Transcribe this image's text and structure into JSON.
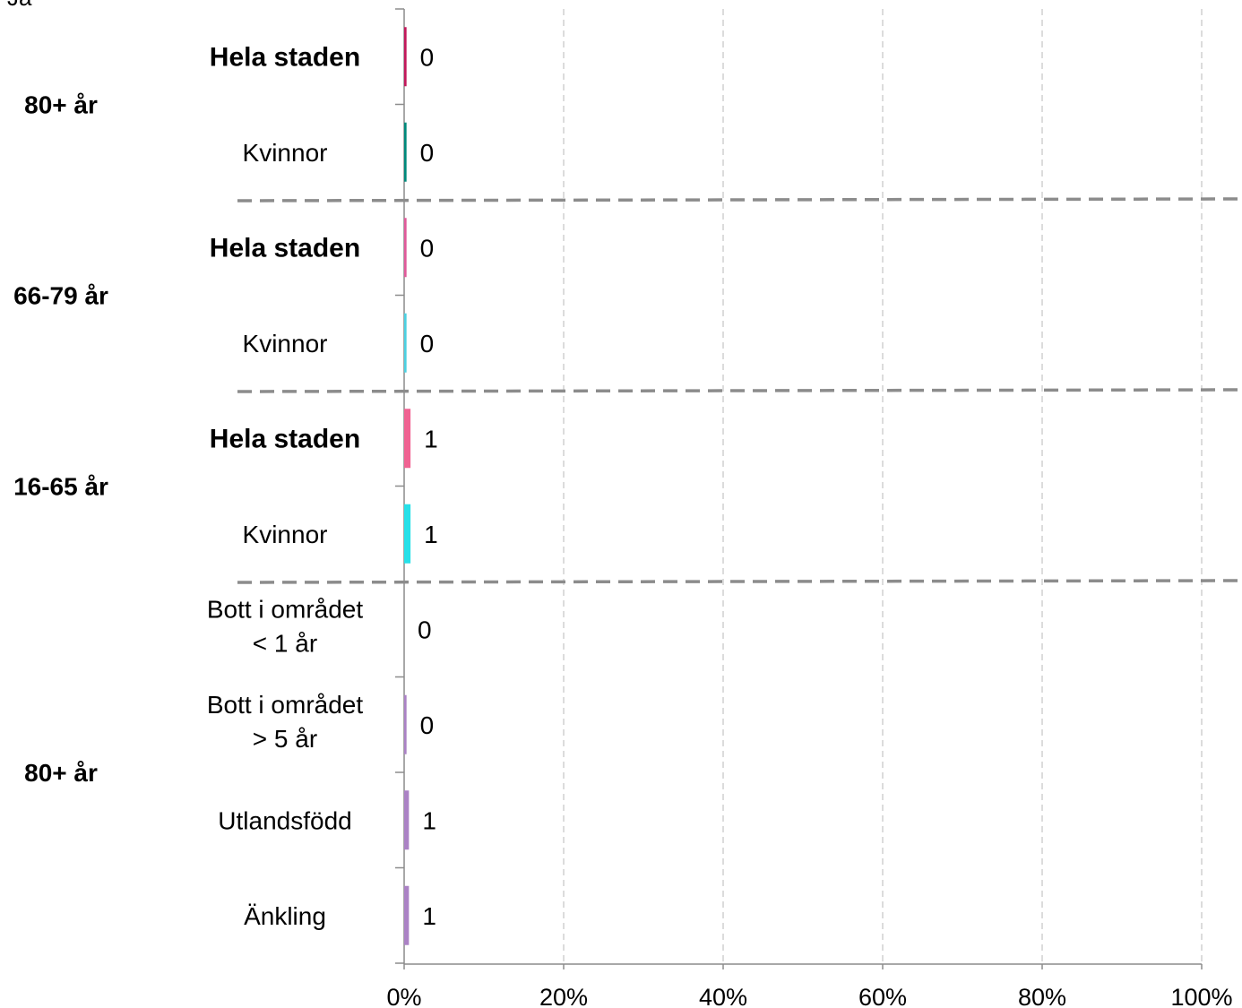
{
  "chart_data": {
    "type": "bar",
    "orientation": "horizontal",
    "series_title": "Ja",
    "xlim": [
      0,
      100
    ],
    "x_ticks": [
      "0%",
      "20%",
      "40%",
      "60%",
      "80%",
      "100%"
    ],
    "grid": "vertical dashed",
    "groups": [
      {
        "label": "80+ år",
        "rows": [
          {
            "category": "Hela staden",
            "bold": true,
            "value": 0.3,
            "label": "0",
            "color": "#c2185b"
          },
          {
            "category": "Kvinnor",
            "bold": false,
            "value": 0.3,
            "label": "0",
            "color": "#00897b"
          }
        ]
      },
      {
        "label": "66-79 år",
        "rows": [
          {
            "category": "Hela staden",
            "bold": true,
            "value": 0.3,
            "label": "0",
            "color": "#e05a9a"
          },
          {
            "category": "Kvinnor",
            "bold": false,
            "value": 0.3,
            "label": "0",
            "color": "#4dd0e1"
          }
        ]
      },
      {
        "label": "16-65 år",
        "rows": [
          {
            "category": "Hela staden",
            "bold": true,
            "value": 0.8,
            "label": "1",
            "color": "#f06292"
          },
          {
            "category": "Kvinnor",
            "bold": false,
            "value": 0.8,
            "label": "1",
            "color": "#26e0e8"
          }
        ]
      },
      {
        "label": "80+ år",
        "rows": [
          {
            "category": "Bott i området\n< 1 år",
            "bold": false,
            "value": 0,
            "label": "0",
            "color": "#ab82c5"
          },
          {
            "category": "Bott i området\n> 5 år",
            "bold": false,
            "value": 0.3,
            "label": "0",
            "color": "#ab82c5"
          },
          {
            "category": "Utlandsfödd",
            "bold": false,
            "value": 0.6,
            "label": "1",
            "color": "#ab82c5"
          },
          {
            "category": "Änkling",
            "bold": false,
            "value": 0.6,
            "label": "1",
            "color": "#ab82c5"
          }
        ]
      }
    ]
  }
}
